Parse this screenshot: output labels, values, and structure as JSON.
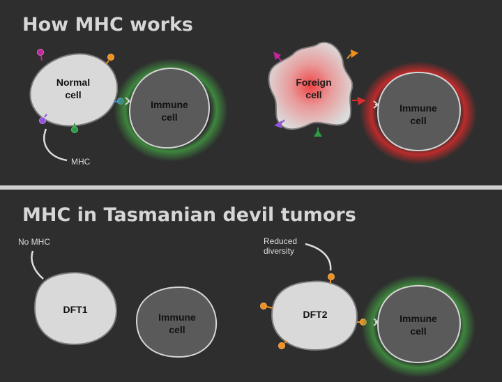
{
  "section_1": {
    "title": "How MHC works",
    "normal_cell": {
      "line1": "Normal",
      "line2": "cell"
    },
    "immune_cell_a": {
      "line1": "Immune",
      "line2": "cell"
    },
    "foreign_cell": {
      "line1": "Foreign",
      "line2": "cell"
    },
    "immune_cell_b": {
      "line1": "Immune",
      "line2": "cell"
    },
    "mhc_callout": "MHC"
  },
  "section_2": {
    "title": "MHC in Tasmanian devil tumors",
    "dft1": {
      "label": "DFT1"
    },
    "dft1_callout": "No MHC",
    "immune_cell_c": {
      "line1": "Immune",
      "line2": "cell"
    },
    "dft2": {
      "label": "DFT2"
    },
    "dft2_callout": {
      "line1": "Reduced",
      "line2": "diversity"
    },
    "immune_cell_d": {
      "line1": "Immune",
      "line2": "cell"
    }
  },
  "colors": {
    "background": "#2e2e2e",
    "divider": "#cfcfcf",
    "normal_cell_fill": "#d9d9d9",
    "immune_cell_fill": "#5a5a5a",
    "recognition_glow": "#3f8a3f",
    "attack_glow": "#c42b2b",
    "foreign_center": "#ef4444",
    "mhc_magenta": "#c0269a",
    "mhc_orange": "#f0901e",
    "mhc_purple": "#8e55d6",
    "mhc_green": "#2f9a45",
    "mhc_blue": "#3d8fe0",
    "mhc_red": "#d63030"
  },
  "icons": {
    "mhc_marker": "mhc-molecule-icon",
    "receptor": "receptor-icon"
  }
}
